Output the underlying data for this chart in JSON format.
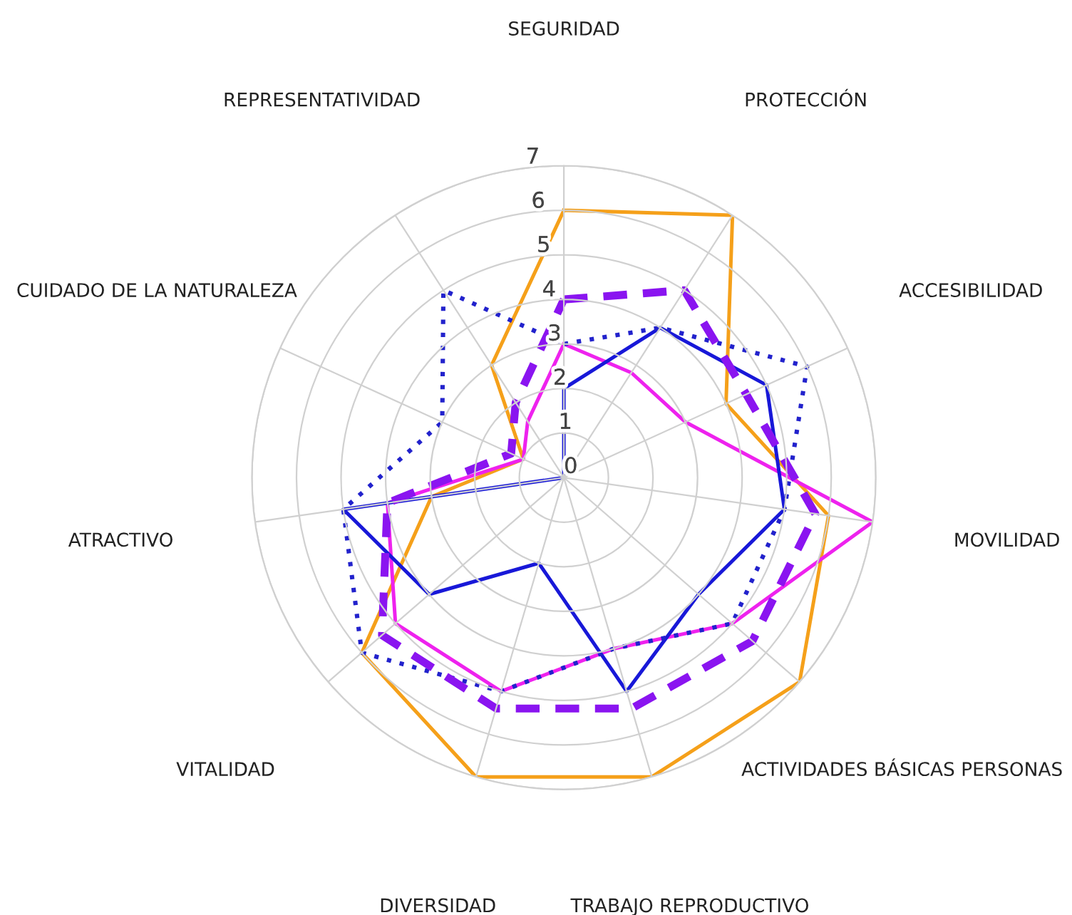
{
  "chart_data": {
    "type": "radar",
    "categories": [
      "SEGURIDAD",
      "PROTECCIÓN",
      "ACCESIBILIDAD",
      "MOVILIDAD",
      "ACTIVIDADES BÁSICAS PERSONAS",
      "TRABAJO REPRODUCTIVO",
      "DIVERSIDAD",
      "VITALIDAD",
      "ATRACTIVO",
      "CUIDADO DE LA NATURALEZA",
      "REPRESENTATIVIDAD"
    ],
    "series": [
      {
        "color": "#f5a01a",
        "line_style": "solid",
        "values": [
          6,
          7,
          4,
          6,
          7,
          7,
          7,
          6,
          3,
          1,
          3
        ]
      },
      {
        "color": "#ee22ee",
        "line_style": "solid",
        "values": [
          3,
          2.8,
          3,
          7,
          5,
          4,
          5,
          5,
          4,
          1,
          1.5
        ]
      },
      {
        "color": "#1818d8",
        "line_style": "solid",
        "values": [
          2,
          4,
          5,
          5,
          4,
          5,
          2,
          4,
          5,
          0,
          0
        ]
      },
      {
        "color": "#2222cc",
        "line_style": "dotted",
        "values": [
          3,
          4,
          6,
          5,
          5,
          4,
          5,
          6,
          5,
          3,
          5
        ]
      },
      {
        "color": "#8a14f0",
        "line_style": "dashed",
        "values": [
          4,
          5,
          4.5,
          5.7,
          5.6,
          5.4,
          5.4,
          5.4,
          4,
          1.3,
          2
        ]
      }
    ],
    "ylim": [
      0,
      7
    ],
    "yticks": [
      0,
      1,
      2,
      3,
      4,
      5,
      6,
      7
    ],
    "grid": true
  }
}
